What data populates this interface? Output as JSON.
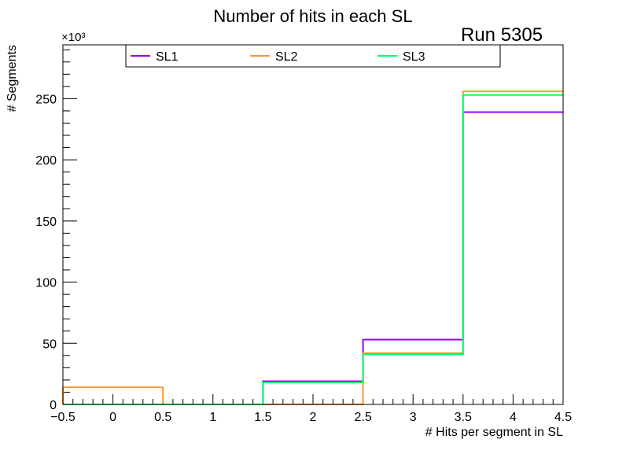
{
  "chart_data": {
    "type": "line",
    "style": "step-histogram",
    "title": "Number of hits in each SL",
    "annotation": "Run 5305",
    "xlabel": "# Hits per segment in SL",
    "ylabel": "# Segments",
    "y_multiplier": "×10³",
    "xlim": [
      -0.5,
      4.5
    ],
    "ylim": [
      0,
      294
    ],
    "bin_edges": [
      -0.5,
      0.5,
      1.5,
      2.5,
      3.5,
      4.5
    ],
    "x_ticks": [
      "−0.5",
      "0",
      "0.5",
      "1",
      "1.5",
      "2",
      "2.5",
      "3",
      "3.5",
      "4",
      "4.5"
    ],
    "y_ticks": [
      "0",
      "50",
      "100",
      "150",
      "200",
      "250"
    ],
    "grid": false,
    "legend_position": "top",
    "series": [
      {
        "name": "SL1",
        "color": "#9900ff",
        "values": [
          0,
          0,
          19,
          53,
          239
        ]
      },
      {
        "name": "SL2",
        "color": "#ff9933",
        "values": [
          14,
          0,
          0,
          42,
          256
        ]
      },
      {
        "name": "SL3",
        "color": "#00ff66",
        "values": [
          0,
          0,
          18,
          41,
          253
        ]
      }
    ]
  }
}
